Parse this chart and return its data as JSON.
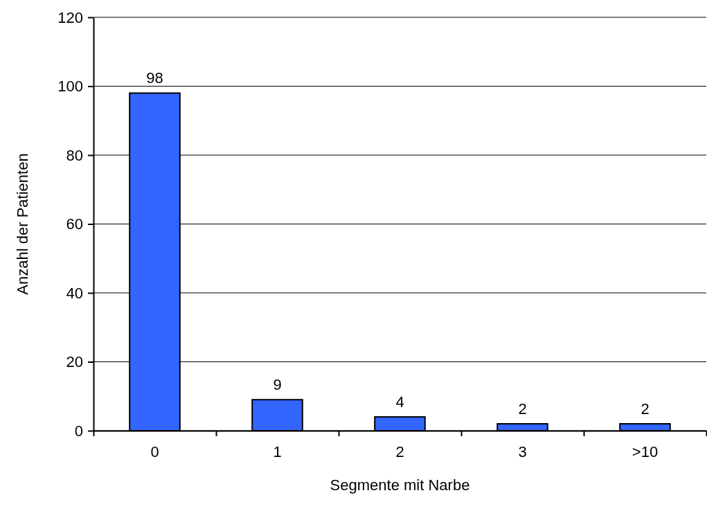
{
  "chart_data": {
    "type": "bar",
    "xlabel": "Segmente mit Narbe",
    "ylabel": "Anzahl der Patienten",
    "categories": [
      "0",
      "1",
      "2",
      "3",
      ">10"
    ],
    "values": [
      98,
      9,
      4,
      2,
      2
    ],
    "color": "#3366ff",
    "ylim": [
      0,
      120
    ],
    "yticks": [
      0,
      20,
      40,
      60,
      80,
      100,
      120
    ],
    "grid": "y",
    "data_labels": true
  }
}
